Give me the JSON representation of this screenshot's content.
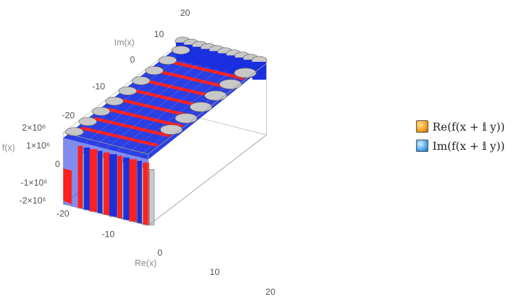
{
  "chart_data": {
    "type": "surface3d",
    "title": "",
    "xlabel": "Re(x)",
    "ylabel": "Im(x)",
    "zlabel": "f(x)",
    "x_ticks": [
      "-20",
      "-10",
      "0",
      "10",
      "20"
    ],
    "y_ticks": [
      "-20",
      "-10",
      "0",
      "10",
      "20"
    ],
    "z_ticks": [
      "-2×10⁶",
      "-1×10⁶",
      "0",
      "1×10⁶",
      "2×10⁶"
    ],
    "xlim": [
      -20,
      20
    ],
    "ylim": [
      -20,
      20
    ],
    "zlim": [
      -2000000,
      2000000
    ],
    "series": [
      {
        "name": "Re(f(x + 𝕚 y))",
        "color": "#ff2020",
        "legend_color": "#f0a020"
      },
      {
        "name": "Im(f(x + 𝕚 y))",
        "color": "#1a2fe0",
        "legend_color": "#4aa6ee"
      }
    ],
    "clip_color": "#c8c8c8",
    "legend_position": "right"
  }
}
